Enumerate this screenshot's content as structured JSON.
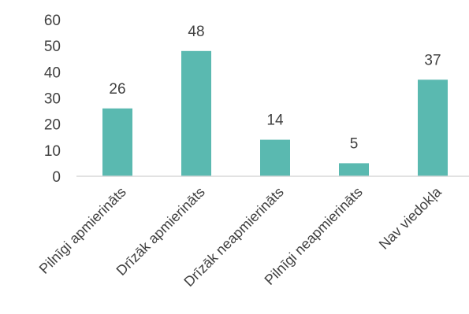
{
  "chart_data": {
    "type": "bar",
    "categories": [
      "Pilnīgi apmierināts",
      "Drīzāk apmierināts",
      "Drīzāk neapmierināts",
      "Pilnīgi neapmierināts",
      "Nav viedokļa"
    ],
    "values": [
      26,
      48,
      14,
      5,
      37
    ],
    "ylim": [
      0,
      60
    ],
    "yticks": [
      0,
      10,
      20,
      30,
      40,
      50,
      60
    ],
    "grid": false,
    "legend": "none",
    "data_labels": true,
    "bar_color": "#5ab9b0"
  }
}
